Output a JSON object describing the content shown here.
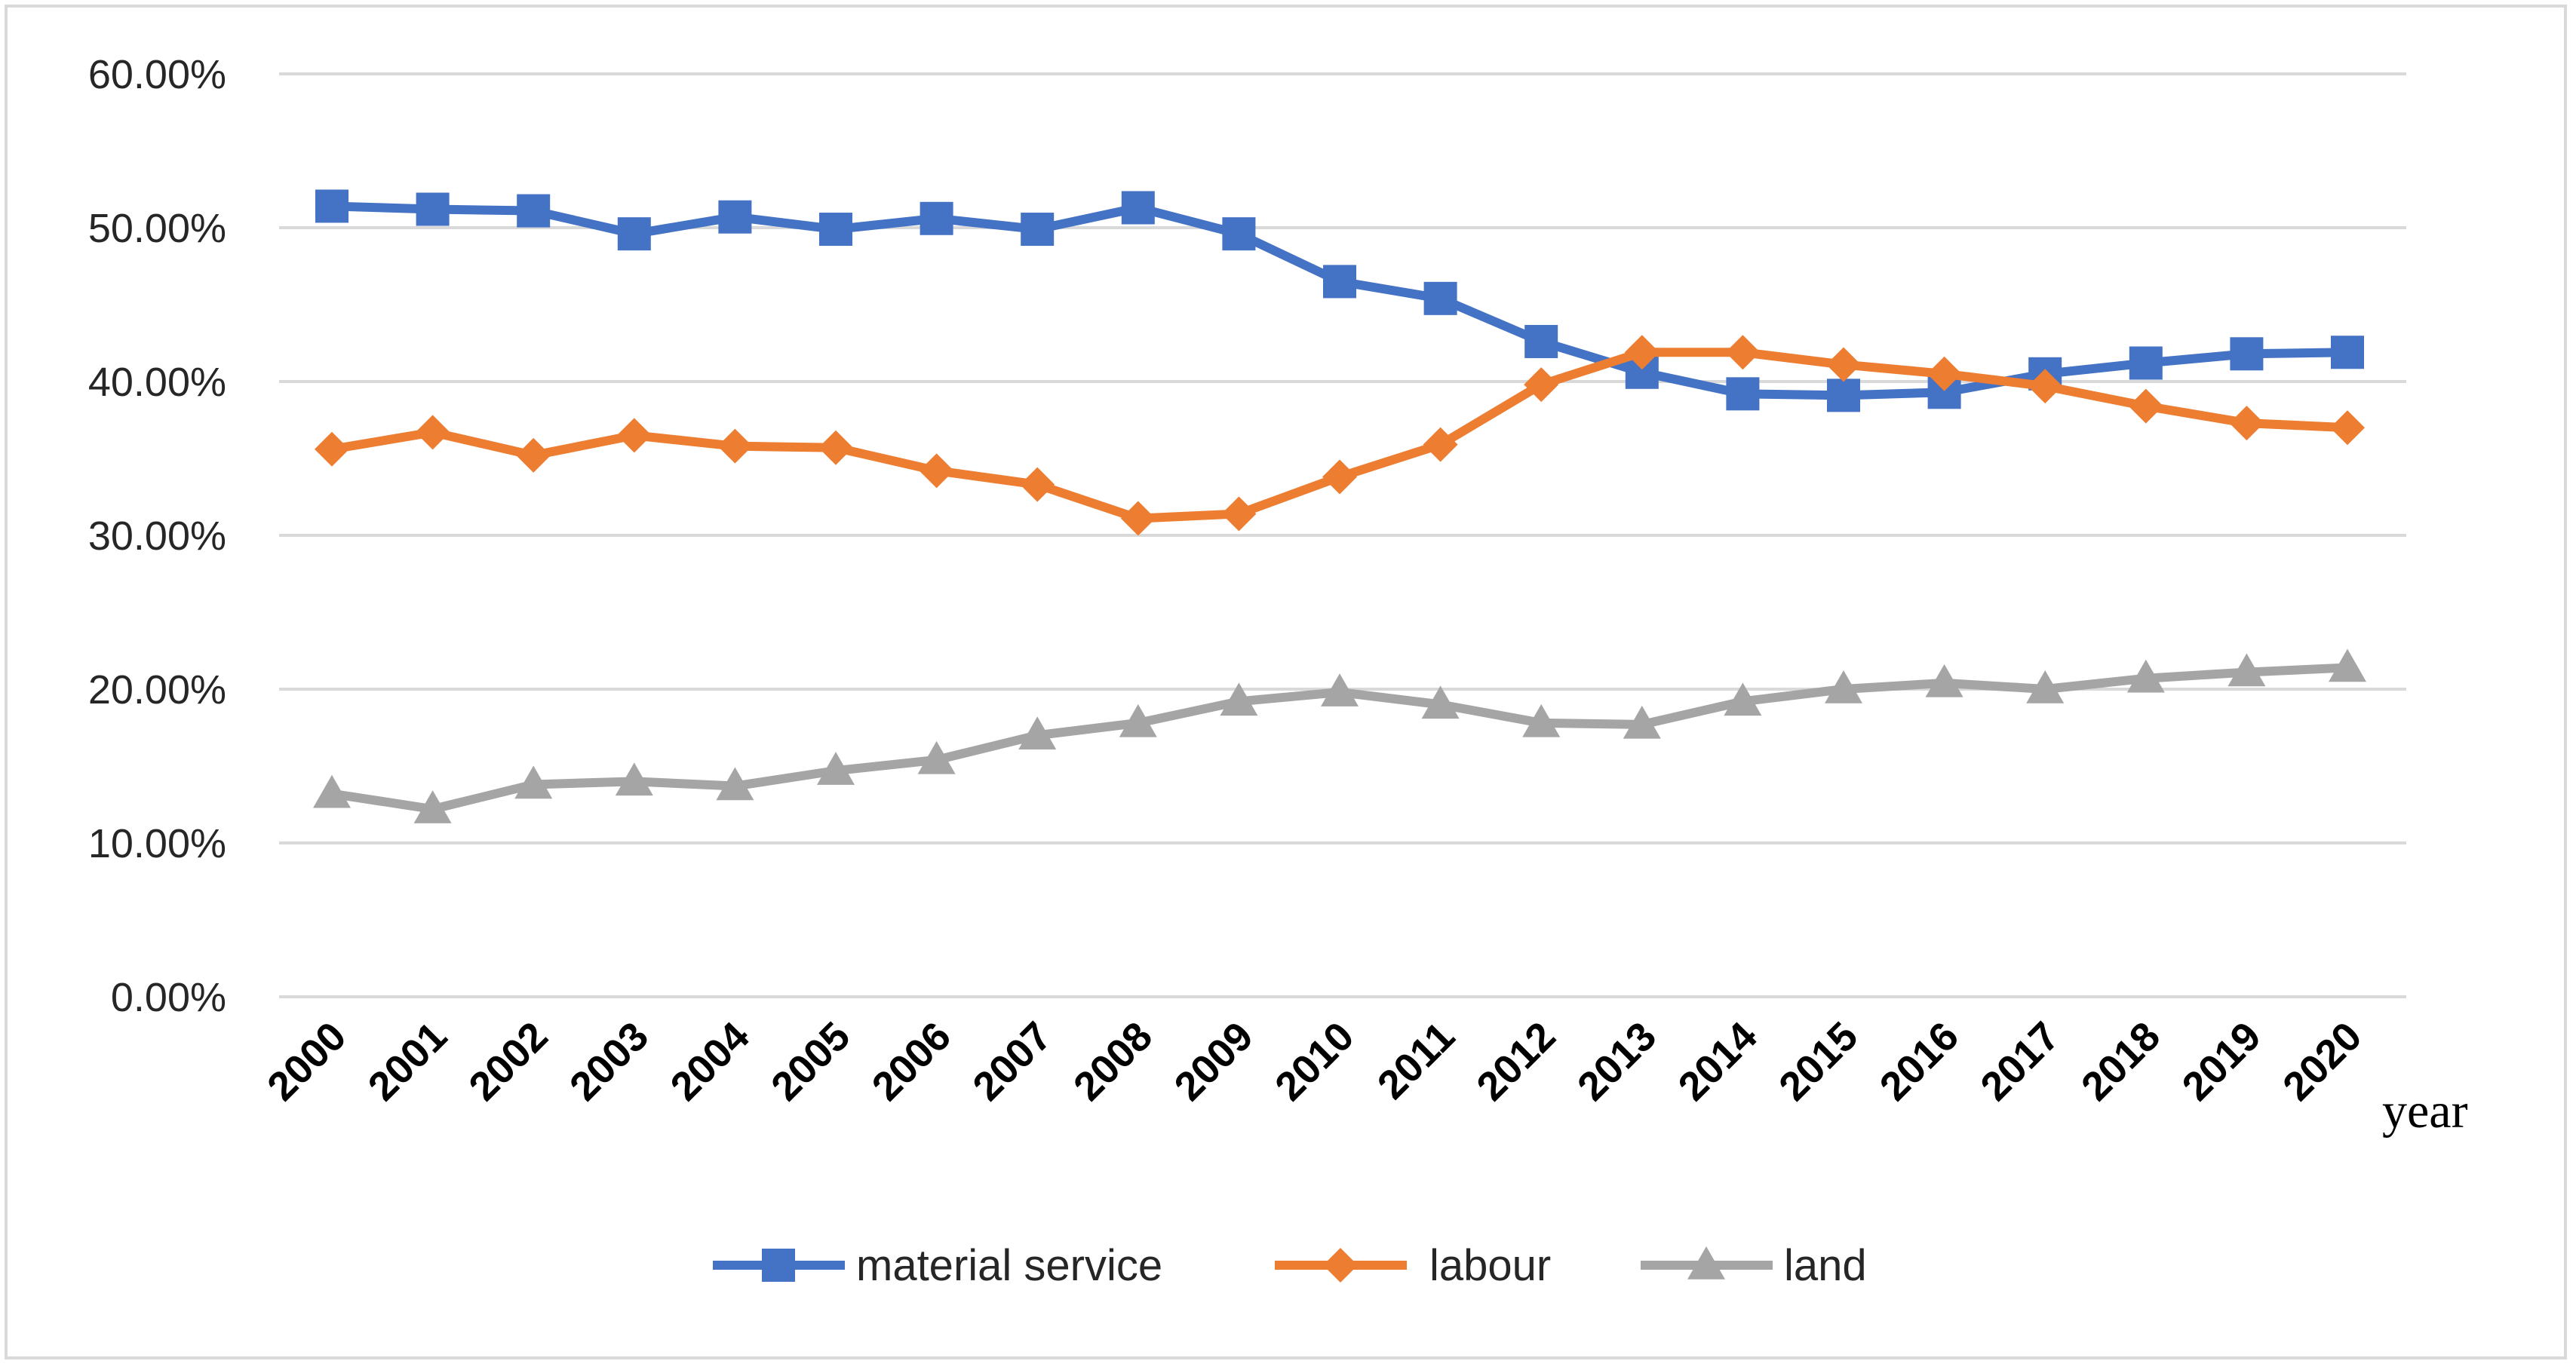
{
  "chart_data": {
    "type": "line",
    "title": "",
    "xlabel": "year",
    "ylabel": "",
    "ylim": [
      0,
      60
    ],
    "y_ticks": [
      "0.00%",
      "10.00%",
      "20.00%",
      "30.00%",
      "40.00%",
      "50.00%",
      "60.00%"
    ],
    "grid": "horizontal",
    "legend_position": "bottom",
    "categories": [
      "2000",
      "2001",
      "2002",
      "2003",
      "2004",
      "2005",
      "2006",
      "2007",
      "2008",
      "2009",
      "2010",
      "2011",
      "2012",
      "2013",
      "2014",
      "2015",
      "2016",
      "2017",
      "2018",
      "2019",
      "2020"
    ],
    "series": [
      {
        "name": "material service",
        "color": "#4472c4",
        "marker": "square",
        "values": [
          51.4,
          51.2,
          51.1,
          49.6,
          50.7,
          49.9,
          50.6,
          49.9,
          51.3,
          49.6,
          46.5,
          45.4,
          42.6,
          40.6,
          39.2,
          39.1,
          39.3,
          40.5,
          41.2,
          41.8,
          41.9
        ]
      },
      {
        "name": "labour",
        "color": "#ed7d31",
        "marker": "diamond",
        "values": [
          35.6,
          36.7,
          35.2,
          36.5,
          35.8,
          35.7,
          34.2,
          33.3,
          31.1,
          31.4,
          33.8,
          35.9,
          39.8,
          41.9,
          41.9,
          41.1,
          40.5,
          39.7,
          38.4,
          37.3,
          37.0
        ]
      },
      {
        "name": "land",
        "color": "#a5a5a5",
        "marker": "triangle",
        "values": [
          13.2,
          12.2,
          13.8,
          14.0,
          13.7,
          14.7,
          15.4,
          17.0,
          17.8,
          19.2,
          19.8,
          19.0,
          17.8,
          17.7,
          19.2,
          20.0,
          20.4,
          20.0,
          20.7,
          21.1,
          21.4
        ]
      }
    ]
  }
}
